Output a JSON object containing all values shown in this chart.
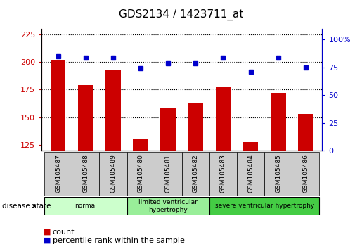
{
  "title": "GDS2134 / 1423711_at",
  "samples": [
    "GSM105487",
    "GSM105488",
    "GSM105489",
    "GSM105480",
    "GSM105481",
    "GSM105482",
    "GSM105483",
    "GSM105484",
    "GSM105485",
    "GSM105486"
  ],
  "counts": [
    201,
    179,
    193,
    131,
    158,
    163,
    178,
    128,
    172,
    153
  ],
  "percentiles": [
    85,
    84,
    84,
    74,
    79,
    79,
    84,
    71,
    84,
    75
  ],
  "ylim_left": [
    120,
    230
  ],
  "ylim_right": [
    0,
    110
  ],
  "yticks_left": [
    125,
    150,
    175,
    200,
    225
  ],
  "yticks_right": [
    0,
    25,
    50,
    75,
    100
  ],
  "groups": [
    {
      "label": "normal",
      "indices": [
        0,
        1,
        2
      ],
      "color": "#ccffcc"
    },
    {
      "label": "limited ventricular\nhypertrophy",
      "indices": [
        3,
        4,
        5
      ],
      "color": "#99ee99"
    },
    {
      "label": "severe ventricular hypertrophy",
      "indices": [
        6,
        7,
        8,
        9
      ],
      "color": "#44cc44"
    }
  ],
  "bar_color": "#cc0000",
  "dot_color": "#0000cc",
  "grid_color": "#000000",
  "background_color": "#ffffff",
  "tick_bg_color": "#cccccc",
  "disease_state_label": "disease state",
  "legend_count": "count",
  "legend_percentile": "percentile rank within the sample",
  "bar_width": 0.55
}
